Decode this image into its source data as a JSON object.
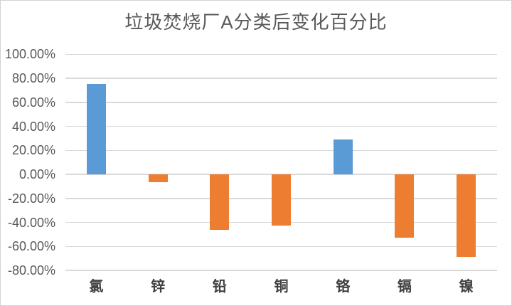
{
  "chart_data": {
    "type": "bar",
    "title": "垃圾焚烧厂A分类后变化百分比",
    "categories": [
      "氯",
      "锌",
      "铅",
      "铜",
      "铬",
      "镉",
      "镍"
    ],
    "values": [
      75,
      -6.5,
      -46,
      -42.5,
      29,
      -52.5,
      -68.7
    ],
    "unit": "%",
    "xlabel": "",
    "ylabel": "",
    "ylim": [
      -80,
      100
    ],
    "ytick_values": [
      100,
      80,
      60,
      40,
      20,
      0,
      -20,
      -40,
      -60,
      -80
    ],
    "ytick_labels": [
      "100.00%",
      "80.00%",
      "60.00%",
      "40.00%",
      "20.00%",
      "0.00%",
      "-20.00%",
      "-40.00%",
      "-60.00%",
      "-80.00%"
    ],
    "grid": "horizontal",
    "legend": "none",
    "colors": {
      "positive_bar": "#5B9BD5",
      "negative_bar": "#ED7D31",
      "gridline": "#D9D9D9",
      "title_text": "#595959",
      "axis_tick_text": "#595959",
      "category_text": "#404040"
    }
  }
}
